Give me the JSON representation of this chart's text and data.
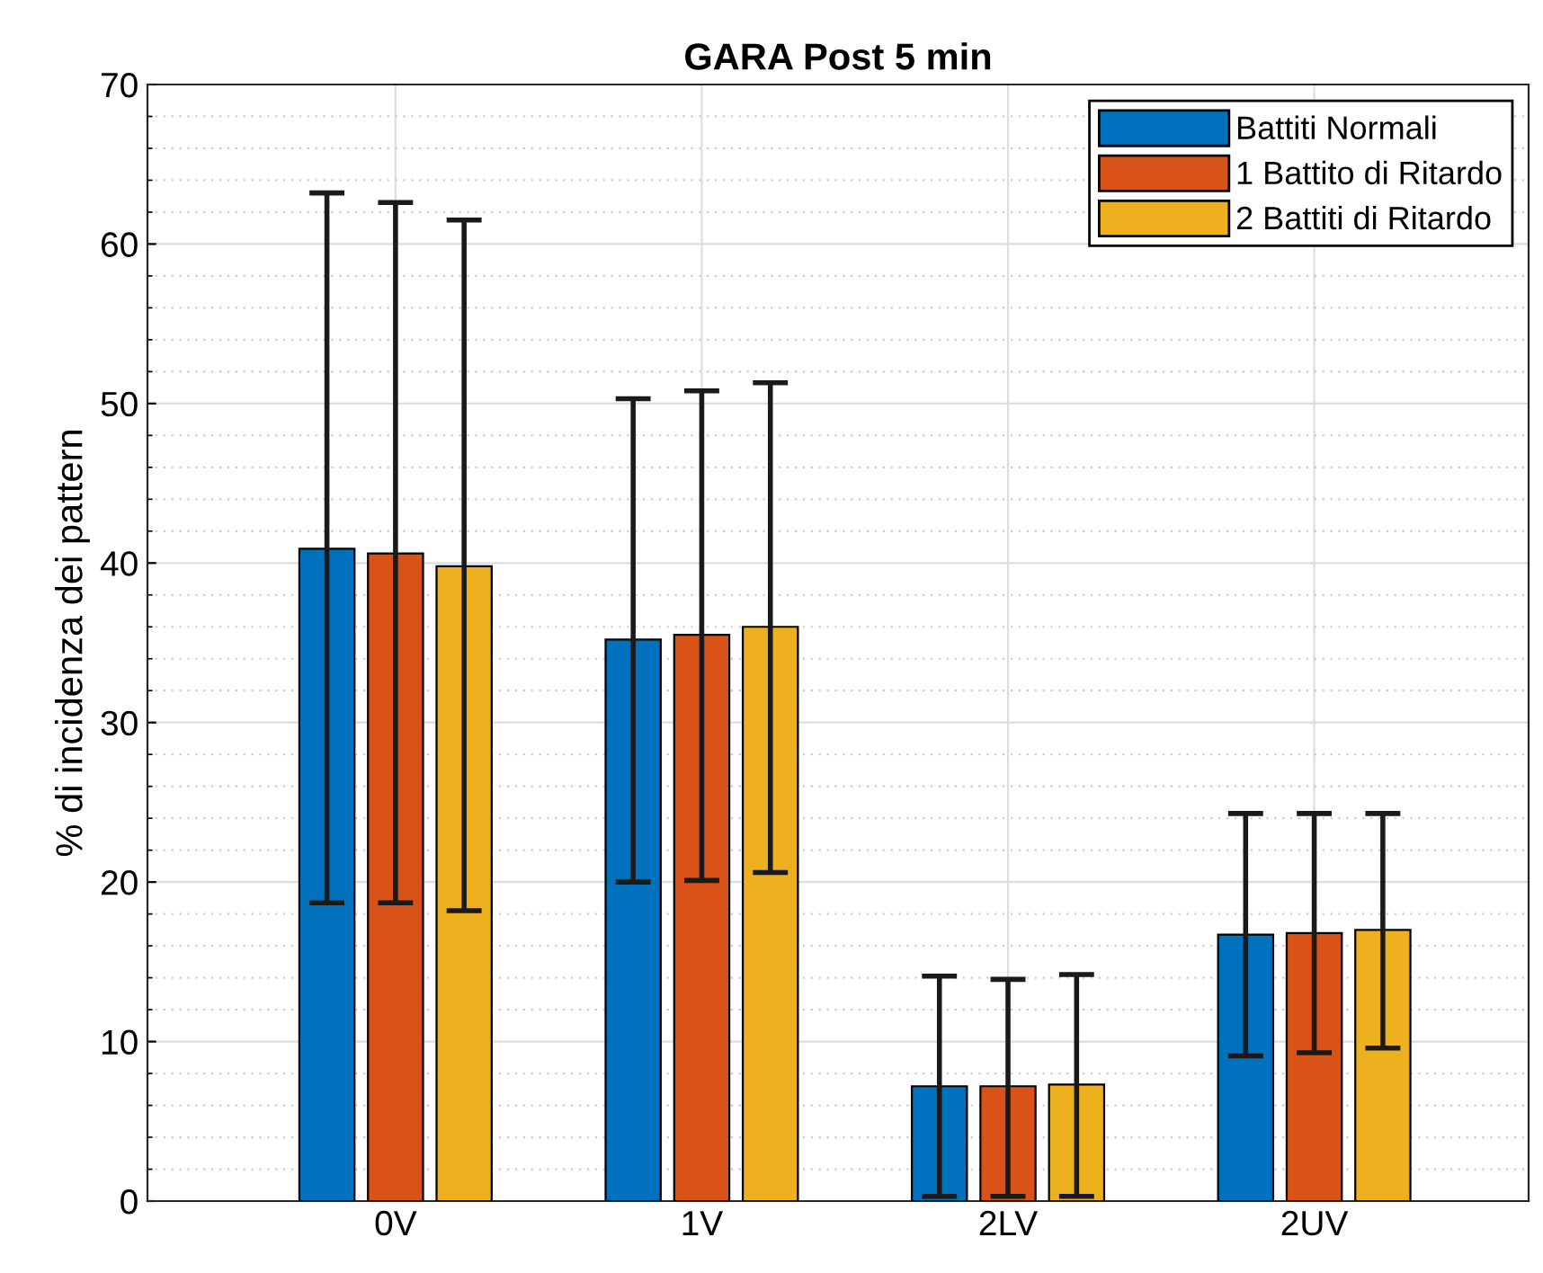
{
  "chart_data": {
    "type": "bar",
    "title": "GARA Post 5 min",
    "ylabel": "% di incidenza dei pattern",
    "categories": [
      "0V",
      "1V",
      "2LV",
      "2UV"
    ],
    "series": [
      {
        "name": "Battiti Normali",
        "color": "#0072bd",
        "values": [
          40.9,
          35.2,
          7.2,
          16.7
        ],
        "errors": [
          [
            18.7,
            63.2
          ],
          [
            20.0,
            50.3
          ],
          [
            0.3,
            14.1
          ],
          [
            9.1,
            24.3
          ]
        ]
      },
      {
        "name": "1 Battito di Ritardo",
        "color": "#d95319",
        "values": [
          40.6,
          35.5,
          7.2,
          16.8
        ],
        "errors": [
          [
            18.7,
            62.6
          ],
          [
            20.1,
            50.8
          ],
          [
            0.3,
            13.9
          ],
          [
            9.3,
            24.3
          ]
        ]
      },
      {
        "name": "2 Battiti di Ritardo",
        "color": "#edb120",
        "values": [
          39.8,
          36.0,
          7.3,
          17.0
        ],
        "errors": [
          [
            18.2,
            61.5
          ],
          [
            20.6,
            51.3
          ],
          [
            0.3,
            14.2
          ],
          [
            9.6,
            24.3
          ]
        ]
      }
    ],
    "ylim": [
      0,
      70
    ],
    "yticks": [
      0,
      10,
      20,
      30,
      40,
      50,
      60,
      70
    ],
    "grid": true,
    "legend": "top right"
  }
}
